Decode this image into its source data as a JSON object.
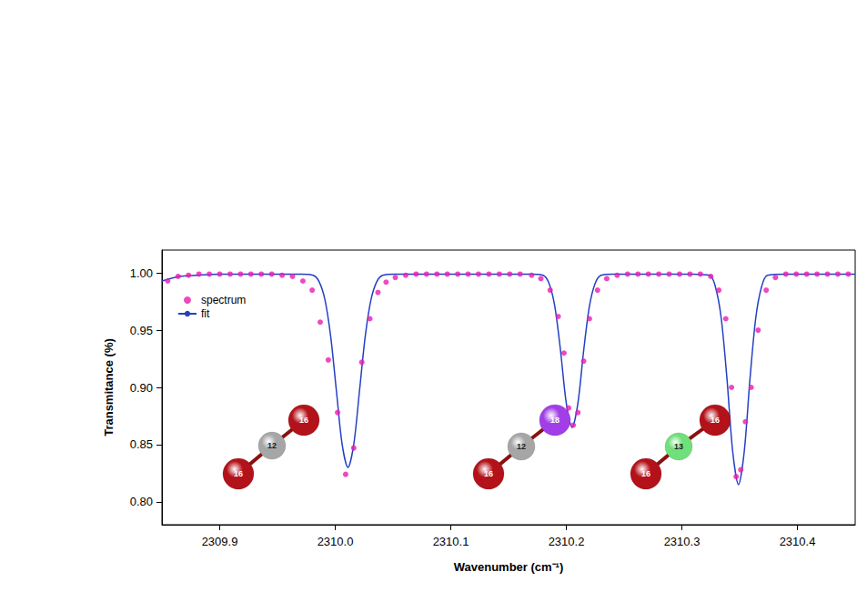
{
  "chart_data": {
    "type": "scatter",
    "x_label": "Wavenumber (cm⁻¹)",
    "y_label": "Transmitance (%)",
    "xlim": [
      2309.85,
      2310.45
    ],
    "xticks": [
      2309.9,
      {
        "value": 2310,
        "label": "2310.0"
      },
      2310.1,
      2310.2,
      2310.3,
      2310.4
    ],
    "ylim": [
      0.78,
      1.02
    ],
    "yticks": [
      {
        "value": 0.8,
        "label": "0.80"
      },
      {
        "value": 0.85,
        "label": "0.85"
      },
      {
        "value": 0.9,
        "label": "0.90"
      },
      {
        "value": 0.95,
        "label": "0.95"
      },
      {
        "value": 1,
        "label": "1.00"
      }
    ],
    "grid": false,
    "legend": "upper left",
    "series": [
      {
        "name": "spectrum",
        "type": "scatter",
        "marker": "circle",
        "color": "#e81cb1",
        "x": [
          2309.855,
          2309.864,
          2309.873,
          2309.882,
          2309.891,
          2309.9,
          2309.909,
          2309.918,
          2309.927,
          2309.936,
          2309.945,
          2309.954,
          2309.963,
          2309.972,
          2309.98,
          2309.987,
          2309.994,
          2310.002,
          2310.009,
          2310.016,
          2310.023,
          2310.03,
          2310.037,
          2310.044,
          2310.052,
          2310.061,
          2310.07,
          2310.079,
          2310.088,
          2310.097,
          2310.106,
          2310.115,
          2310.124,
          2310.133,
          2310.142,
          2310.151,
          2310.16,
          2310.17,
          2310.178,
          2310.186,
          2310.193,
          2310.198,
          2310.202,
          2310.206,
          2310.21,
          2310.215,
          2310.22,
          2310.227,
          2310.235,
          2310.244,
          2310.253,
          2310.262,
          2310.271,
          2310.28,
          2310.289,
          2310.298,
          2310.307,
          2310.316,
          2310.325,
          2310.332,
          2310.338,
          2310.343,
          2310.347,
          2310.351,
          2310.355,
          2310.36,
          2310.366,
          2310.373,
          2310.381,
          2310.39,
          2310.399,
          2310.408,
          2310.417,
          2310.426,
          2310.435,
          2310.444
        ],
        "values": [
          0.993,
          0.997,
          0.998,
          0.999,
          0.999,
          0.999,
          0.999,
          0.999,
          0.999,
          0.999,
          0.999,
          0.998,
          0.997,
          0.993,
          0.985,
          0.957,
          0.924,
          0.878,
          0.824,
          0.847,
          0.922,
          0.96,
          0.983,
          0.992,
          0.996,
          0.998,
          0.999,
          0.999,
          0.999,
          0.999,
          0.999,
          0.999,
          0.999,
          0.999,
          0.999,
          0.999,
          0.999,
          0.998,
          0.995,
          0.985,
          0.962,
          0.93,
          0.882,
          0.867,
          0.878,
          0.923,
          0.96,
          0.985,
          0.995,
          0.998,
          0.999,
          0.999,
          0.999,
          0.999,
          0.999,
          0.999,
          0.999,
          0.999,
          0.997,
          0.985,
          0.96,
          0.9,
          0.822,
          0.828,
          0.87,
          0.9,
          0.95,
          0.985,
          0.996,
          0.999,
          0.999,
          0.999,
          0.999,
          0.999,
          0.999,
          0.999
        ]
      },
      {
        "name": "fit",
        "type": "line",
        "line_style": "solid",
        "color": "#2340c4",
        "x": [
          2309.85,
          2309.865,
          2309.88,
          2309.9,
          2309.95,
          2309.971,
          2309.981,
          2309.986,
          2309.991,
          2309.996,
          2310.001,
          2310.006,
          2310.011,
          2310.016,
          2310.021,
          2310.026,
          2310.031,
          2310.036,
          2310.041,
          2310.051,
          2310.1,
          2310.17,
          2310.18,
          2310.185,
          2310.19,
          2310.195,
          2310.2,
          2310.205,
          2310.21,
          2310.215,
          2310.22,
          2310.225,
          2310.23,
          2310.24,
          2310.3,
          2310.324,
          2310.329,
          2310.334,
          2310.339,
          2310.344,
          2310.349,
          2310.354,
          2310.359,
          2310.364,
          2310.369,
          2310.374,
          2310.39,
          2310.45
        ],
        "values": [
          0.993,
          0.997,
          0.998,
          0.999,
          0.999,
          0.999,
          0.998,
          0.9925,
          0.977,
          0.945,
          0.897,
          0.85,
          0.83,
          0.85,
          0.897,
          0.945,
          0.977,
          0.9925,
          0.998,
          0.999,
          0.999,
          0.999,
          0.998,
          0.991,
          0.971,
          0.932,
          0.886,
          0.865,
          0.886,
          0.932,
          0.971,
          0.991,
          0.998,
          0.999,
          0.999,
          0.998,
          0.988,
          0.961,
          0.908,
          0.844,
          0.815,
          0.844,
          0.908,
          0.961,
          0.988,
          0.998,
          0.999,
          0.999
        ]
      }
    ],
    "annotations": [
      {
        "molecule": [
          {
            "label": "16",
            "color": "#b3121a"
          },
          {
            "label": "12",
            "color": "#a6a6a6"
          },
          {
            "label": "16",
            "color": "#b3121a"
          }
        ]
      },
      {
        "molecule": [
          {
            "label": "16",
            "color": "#b3121a"
          },
          {
            "label": "12",
            "color": "#a6a6a6"
          },
          {
            "label": "18",
            "color": "#a23ee8"
          }
        ]
      },
      {
        "molecule": [
          {
            "label": "16",
            "color": "#b3121a"
          },
          {
            "label": "13",
            "color": "#6fe07a"
          },
          {
            "label": "16",
            "color": "#b3121a"
          }
        ]
      }
    ]
  }
}
